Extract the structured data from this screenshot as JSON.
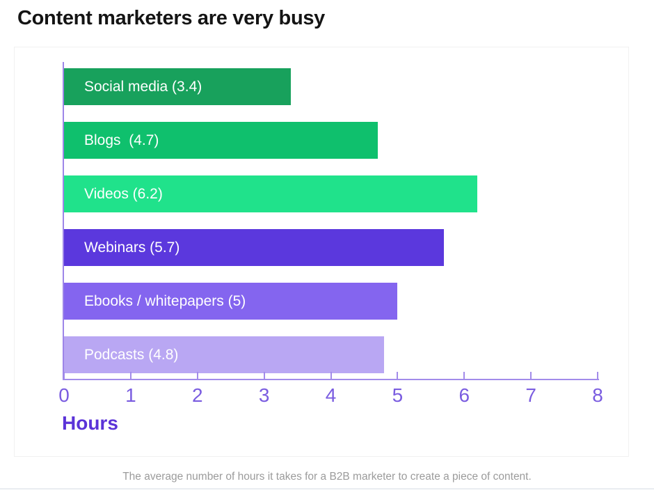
{
  "page": {
    "title": "Content marketers are very busy",
    "caption": "The average number of hours it takes for a B2B marketer to create a piece of content."
  },
  "chart_data": {
    "type": "bar",
    "orientation": "horizontal",
    "title": "Content marketers are very busy",
    "categories": [
      "Social media",
      "Blogs",
      "Videos",
      "Webinars",
      "Ebooks / whitepapers",
      "Podcasts"
    ],
    "values": [
      3.4,
      4.7,
      6.2,
      5.7,
      5,
      4.8
    ],
    "bar_labels": [
      "Social media (3.4)",
      "Blogs  (4.7)",
      "Videos (6.2)",
      "Webinars (5.7)",
      "Ebooks / whitepapers (5)",
      "Podcasts (4.8)"
    ],
    "bar_colors": [
      "#18a15c",
      "#0fc06d",
      "#20e28b",
      "#5b38dd",
      "#8465ef",
      "#b9a7f3"
    ],
    "xlabel": "Hours",
    "ylabel": "",
    "xlim": [
      0,
      8
    ],
    "x_ticks": [
      "0",
      "1",
      "2",
      "3",
      "4",
      "5",
      "6",
      "7",
      "8"
    ],
    "grid": false,
    "legend": false,
    "colors": {
      "axis": "#a28bea",
      "tick_labels": "#7a5ce0",
      "xlabel": "#5b33d8",
      "bar_text": "#ffffff"
    }
  }
}
